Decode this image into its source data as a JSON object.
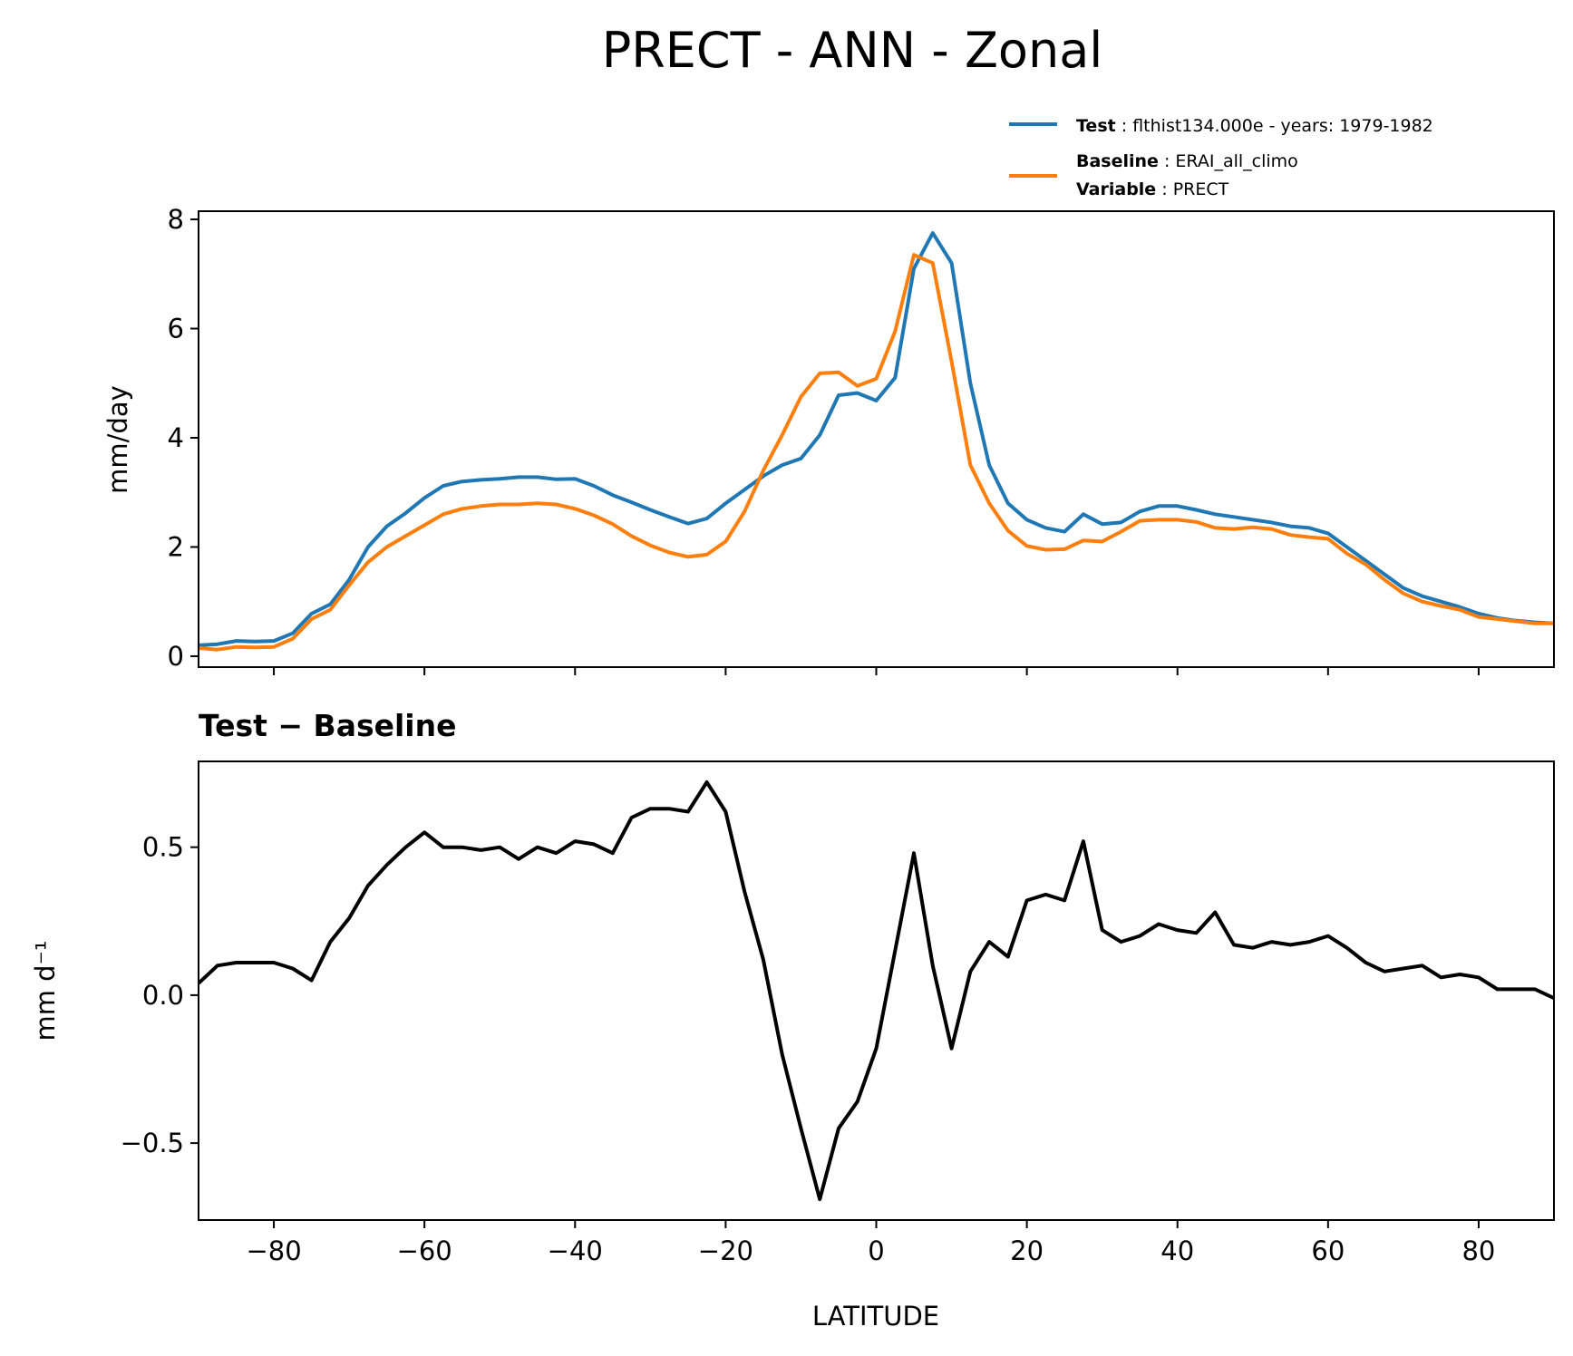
{
  "figure_title": "PRECT - ANN - Zonal",
  "legend": {
    "test": {
      "key": "Test",
      "value": "flthist134.000e - years: 1979-1982",
      "color": "#1f77b4"
    },
    "baseline": {
      "key": "Baseline",
      "value": "ERAI_all_climo",
      "color": "#ff7f0e"
    },
    "variable": {
      "key": "Variable",
      "value": "PRECT"
    }
  },
  "chart_data": [
    {
      "type": "line",
      "title": "",
      "xlabel": "",
      "ylabel": "mm/day",
      "xlim": [
        -90,
        90
      ],
      "ylim": [
        -0.2,
        8.15
      ],
      "yticks": [
        0,
        2,
        4,
        6,
        8
      ],
      "xticks": [
        -80,
        -60,
        -40,
        -20,
        0,
        20,
        40,
        60,
        80
      ],
      "series": [
        {
          "name": "Test",
          "color": "#1f77b4",
          "x": [
            -90,
            -87.5,
            -85,
            -82.5,
            -80,
            -77.5,
            -75,
            -72.5,
            -70,
            -67.5,
            -65,
            -62.5,
            -60,
            -57.5,
            -55,
            -52.5,
            -50,
            -47.5,
            -45,
            -42.5,
            -40,
            -37.5,
            -35,
            -32.5,
            -30,
            -27.5,
            -25,
            -22.5,
            -20,
            -17.5,
            -15,
            -12.5,
            -10,
            -7.5,
            -5,
            -2.5,
            0,
            2.5,
            5,
            7.5,
            10,
            12.5,
            15,
            17.5,
            20,
            22.5,
            25,
            27.5,
            30,
            32.5,
            35,
            37.5,
            40,
            42.5,
            45,
            47.5,
            50,
            52.5,
            55,
            57.5,
            60,
            62.5,
            65,
            67.5,
            70,
            72.5,
            75,
            77.5,
            80,
            82.5,
            85,
            87.5,
            90
          ],
          "values": [
            0.2,
            0.22,
            0.28,
            0.27,
            0.28,
            0.42,
            0.78,
            0.95,
            1.4,
            2.0,
            2.38,
            2.62,
            2.9,
            3.12,
            3.2,
            3.23,
            3.25,
            3.28,
            3.28,
            3.24,
            3.25,
            3.12,
            2.95,
            2.82,
            2.68,
            2.55,
            2.43,
            2.52,
            2.8,
            3.05,
            3.3,
            3.5,
            3.62,
            4.05,
            4.78,
            4.82,
            4.68,
            5.1,
            7.1,
            7.75,
            7.2,
            5.0,
            3.5,
            2.8,
            2.5,
            2.35,
            2.28,
            2.6,
            2.42,
            2.45,
            2.65,
            2.75,
            2.75,
            2.68,
            2.6,
            2.55,
            2.5,
            2.45,
            2.38,
            2.35,
            2.25,
            2.0,
            1.75,
            1.5,
            1.25,
            1.1,
            1.0,
            0.9,
            0.78,
            0.7,
            0.65,
            0.62,
            0.6
          ]
        },
        {
          "name": "Baseline",
          "color": "#ff7f0e",
          "x": [
            -90,
            -87.5,
            -85,
            -82.5,
            -80,
            -77.5,
            -75,
            -72.5,
            -70,
            -67.5,
            -65,
            -62.5,
            -60,
            -57.5,
            -55,
            -52.5,
            -50,
            -47.5,
            -45,
            -42.5,
            -40,
            -37.5,
            -35,
            -32.5,
            -30,
            -27.5,
            -25,
            -22.5,
            -20,
            -17.5,
            -15,
            -12.5,
            -10,
            -7.5,
            -5,
            -2.5,
            0,
            2.5,
            5,
            7.5,
            10,
            12.5,
            15,
            17.5,
            20,
            22.5,
            25,
            27.5,
            30,
            32.5,
            35,
            37.5,
            40,
            42.5,
            45,
            47.5,
            50,
            52.5,
            55,
            57.5,
            60,
            62.5,
            65,
            67.5,
            70,
            72.5,
            75,
            77.5,
            80,
            82.5,
            85,
            87.5,
            90
          ],
          "values": [
            0.15,
            0.12,
            0.17,
            0.16,
            0.17,
            0.32,
            0.68,
            0.85,
            1.3,
            1.72,
            2.0,
            2.2,
            2.4,
            2.6,
            2.7,
            2.75,
            2.78,
            2.78,
            2.8,
            2.78,
            2.7,
            2.58,
            2.42,
            2.2,
            2.03,
            1.9,
            1.82,
            1.86,
            2.1,
            2.65,
            3.4,
            4.05,
            4.75,
            5.18,
            5.2,
            4.95,
            5.08,
            5.95,
            7.35,
            7.2,
            5.4,
            3.5,
            2.8,
            2.3,
            2.02,
            1.95,
            1.96,
            2.12,
            2.1,
            2.28,
            2.48,
            2.5,
            2.5,
            2.46,
            2.35,
            2.33,
            2.36,
            2.33,
            2.22,
            2.18,
            2.15,
            1.88,
            1.68,
            1.4,
            1.15,
            1.0,
            0.92,
            0.85,
            0.72,
            0.68,
            0.64,
            0.6,
            0.6
          ]
        }
      ]
    },
    {
      "type": "line",
      "title": "Test − Baseline",
      "xlabel": "LATITUDE",
      "ylabel": "mm d⁻¹",
      "xlim": [
        -90,
        90
      ],
      "ylim": [
        -0.76,
        0.79
      ],
      "yticks": [
        -0.5,
        0.0,
        0.5
      ],
      "ytick_labels": [
        "−0.5",
        "0.0",
        "0.5"
      ],
      "xticks": [
        -80,
        -60,
        -40,
        -20,
        0,
        20,
        40,
        60,
        80
      ],
      "xtick_labels": [
        "−80",
        "−60",
        "−40",
        "−20",
        "0",
        "20",
        "40",
        "60",
        "80"
      ],
      "series": [
        {
          "name": "Test - Baseline",
          "color": "#000000",
          "x": [
            -90,
            -87.5,
            -85,
            -82.5,
            -80,
            -77.5,
            -75,
            -72.5,
            -70,
            -67.5,
            -65,
            -62.5,
            -60,
            -57.5,
            -55,
            -52.5,
            -50,
            -47.5,
            -45,
            -42.5,
            -40,
            -37.5,
            -35,
            -32.5,
            -30,
            -27.5,
            -25,
            -22.5,
            -20,
            -17.5,
            -15,
            -12.5,
            -10,
            -7.5,
            -5,
            -2.5,
            0,
            2.5,
            5,
            7.5,
            10,
            12.5,
            15,
            17.5,
            20,
            22.5,
            25,
            27.5,
            30,
            32.5,
            35,
            37.5,
            40,
            42.5,
            45,
            47.5,
            50,
            52.5,
            55,
            57.5,
            60,
            62.5,
            65,
            67.5,
            70,
            72.5,
            75,
            77.5,
            80,
            82.5,
            85,
            87.5,
            90
          ],
          "values": [
            0.04,
            0.1,
            0.11,
            0.11,
            0.11,
            0.09,
            0.05,
            0.18,
            0.26,
            0.37,
            0.44,
            0.5,
            0.55,
            0.5,
            0.5,
            0.49,
            0.5,
            0.46,
            0.5,
            0.48,
            0.52,
            0.51,
            0.48,
            0.6,
            0.63,
            0.63,
            0.62,
            0.72,
            0.62,
            0.35,
            0.12,
            -0.2,
            -0.45,
            -0.69,
            -0.45,
            -0.36,
            -0.18,
            0.15,
            0.48,
            0.1,
            -0.18,
            0.08,
            0.18,
            0.13,
            0.32,
            0.34,
            0.32,
            0.52,
            0.22,
            0.18,
            0.2,
            0.24,
            0.22,
            0.21,
            0.28,
            0.17,
            0.16,
            0.18,
            0.17,
            0.18,
            0.2,
            0.16,
            0.11,
            0.08,
            0.09,
            0.1,
            0.06,
            0.07,
            0.06,
            0.02,
            0.02,
            0.02,
            -0.01
          ]
        }
      ]
    }
  ]
}
